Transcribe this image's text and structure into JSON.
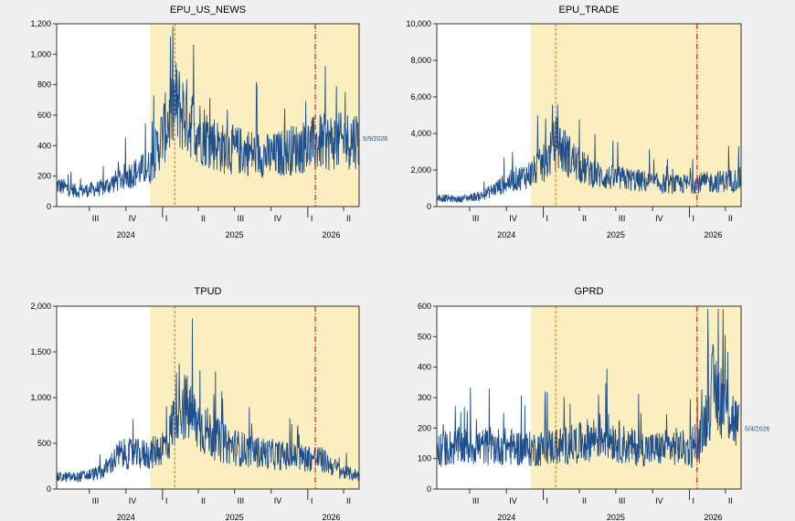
{
  "chart_data": [
    {
      "type": "line",
      "title": "EPU_US_NEWS",
      "ylim": [
        0,
        1200
      ],
      "yticks": [
        0,
        200,
        400,
        600,
        800,
        1000,
        1200
      ],
      "ytick_labels": [
        "0",
        "200",
        "400",
        "600",
        "800",
        "1,000",
        "1,200"
      ],
      "x_range": [
        "2024-04-10",
        "2026-05-10"
      ],
      "quarter_labels": [
        "III",
        "IV",
        "I",
        "II",
        "III",
        "IV",
        "I",
        "II"
      ],
      "year_labels": [
        "2024",
        "2025",
        "2026"
      ],
      "shaded_start": "2024-12-01",
      "vlines": [
        {
          "date": "2025-02-01",
          "color": "#e08a2a"
        },
        {
          "date": "2026-01-20",
          "color": "#d02020"
        }
      ],
      "end_annotation": "5/9/2026",
      "series_color": "#1f4e8c",
      "series": [
        {
          "x_keys": [
            "2024-04-10",
            "2024-06-01",
            "2024-08-01",
            "2024-10-01",
            "2024-12-01",
            "2025-02-01",
            "2025-04-01",
            "2025-06-01",
            "2025-08-01",
            "2025-10-01",
            "2025-12-01",
            "2026-02-01",
            "2026-04-01",
            "2026-05-09"
          ],
          "values": [
            140,
            100,
            120,
            200,
            260,
            680,
            500,
            380,
            360,
            330,
            380,
            420,
            430,
            450
          ]
        }
      ]
    },
    {
      "type": "line",
      "title": "EPU_TRADE",
      "ylim": [
        0,
        10000
      ],
      "yticks": [
        0,
        2000,
        4000,
        6000,
        8000,
        10000
      ],
      "ytick_labels": [
        "0",
        "2,000",
        "4,000",
        "6,000",
        "8,000",
        "10,000"
      ],
      "x_range": [
        "2024-04-10",
        "2026-05-10"
      ],
      "quarter_labels": [
        "III",
        "IV",
        "I",
        "II",
        "III",
        "IV",
        "I",
        "II"
      ],
      "year_labels": [
        "2024",
        "2025",
        "2026"
      ],
      "shaded_start": "2024-12-01",
      "vlines": [
        {
          "date": "2025-02-01",
          "color": "#e08a2a"
        },
        {
          "date": "2026-01-20",
          "color": "#d02020"
        }
      ],
      "end_annotation": "",
      "series_color": "#1f4e8c",
      "series": [
        {
          "x_keys": [
            "2024-04-10",
            "2024-06-01",
            "2024-08-01",
            "2024-10-01",
            "2024-12-01",
            "2025-01-10",
            "2025-02-01",
            "2025-04-01",
            "2025-06-01",
            "2025-08-01",
            "2025-10-01",
            "2025-12-01",
            "2026-02-01",
            "2026-04-01",
            "2026-05-09"
          ],
          "values": [
            500,
            400,
            600,
            1300,
            1800,
            2500,
            3500,
            2200,
            1600,
            1500,
            1300,
            1200,
            1300,
            1400,
            1500
          ]
        }
      ]
    },
    {
      "type": "line",
      "title": "TPUD",
      "ylim": [
        0,
        2000
      ],
      "yticks": [
        0,
        500,
        1000,
        1500,
        2000
      ],
      "ytick_labels": [
        "0",
        "500",
        "1,000",
        "1,500",
        "2,000"
      ],
      "x_range": [
        "2024-04-10",
        "2026-05-10"
      ],
      "quarter_labels": [
        "III",
        "IV",
        "I",
        "II",
        "III",
        "IV",
        "I",
        "II"
      ],
      "year_labels": [
        "2024",
        "2025",
        "2026"
      ],
      "shaded_start": "2024-12-01",
      "vlines": [
        {
          "date": "2025-02-01",
          "color": "#e08a2a"
        },
        {
          "date": "2026-01-20",
          "color": "#d02020"
        }
      ],
      "end_annotation": "",
      "series_color": "#1f4e8c",
      "series": [
        {
          "x_keys": [
            "2024-04-10",
            "2024-06-01",
            "2024-08-01",
            "2024-09-15",
            "2024-12-01",
            "2025-01-15",
            "2025-02-10",
            "2025-04-01",
            "2025-06-01",
            "2025-08-01",
            "2025-10-01",
            "2025-12-01",
            "2026-02-01",
            "2026-04-01",
            "2026-05-09"
          ],
          "values": [
            130,
            130,
            180,
            380,
            380,
            500,
            1000,
            700,
            500,
            420,
            380,
            350,
            330,
            180,
            150
          ]
        }
      ]
    },
    {
      "type": "line",
      "title": "GPRD",
      "ylim": [
        0,
        600
      ],
      "yticks": [
        0,
        100,
        200,
        300,
        400,
        500,
        600
      ],
      "ytick_labels": [
        "0",
        "100",
        "200",
        "300",
        "400",
        "500",
        "600"
      ],
      "x_range": [
        "2024-04-10",
        "2026-05-10"
      ],
      "quarter_labels": [
        "III",
        "IV",
        "I",
        "II",
        "III",
        "IV",
        "I",
        "II"
      ],
      "year_labels": [
        "2024",
        "2025",
        "2026"
      ],
      "shaded_start": "2024-12-01",
      "vlines": [
        {
          "date": "2025-02-01",
          "color": "#e08a2a"
        },
        {
          "date": "2026-01-20",
          "color": "#d02020"
        }
      ],
      "end_annotation": "5/4/2026",
      "series_color": "#1f4e8c",
      "series": [
        {
          "x_keys": [
            "2024-04-10",
            "2024-06-01",
            "2024-08-01",
            "2024-10-01",
            "2024-12-01",
            "2025-02-01",
            "2025-04-01",
            "2025-06-01",
            "2025-08-01",
            "2025-10-01",
            "2025-12-01",
            "2026-01-20",
            "2026-03-01",
            "2026-04-01",
            "2026-05-04"
          ],
          "values": [
            130,
            140,
            140,
            140,
            130,
            140,
            150,
            180,
            140,
            130,
            140,
            120,
            330,
            280,
            200
          ]
        }
      ]
    }
  ]
}
